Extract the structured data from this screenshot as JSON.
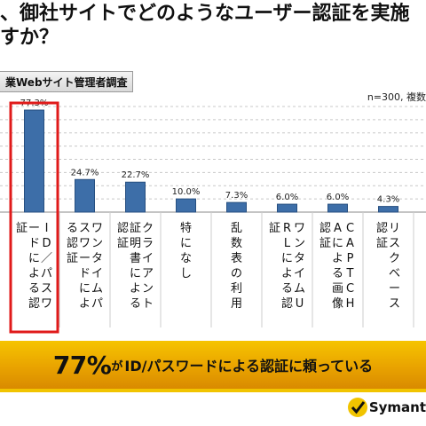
{
  "header": {
    "title_line1": "、御社サイトでどのようなユーザー認証を実施",
    "title_line2": "すか？",
    "survey_tag": "業Webサイト管理者調査",
    "sample_note": "n=300, 複数"
  },
  "chart_data": {
    "type": "bar",
    "categories": [
      "ID／パスワードによる認証",
      "ワンタイムパスワードによる認証",
      "クライアント証明書による認証",
      "特になし",
      "乱数表の利用",
      "ワンタイムURLによる認証",
      "CAPTCHAによる画像認証",
      "リスクベース認証"
    ],
    "values": [
      77.3,
      24.7,
      22.7,
      10.0,
      7.3,
      6.0,
      6.0,
      4.3
    ],
    "value_labels": [
      "77.3%",
      "24.7%",
      "22.7%",
      "10.0%",
      "7.3%",
      "6.0%",
      "6.0%",
      "4.3%"
    ],
    "ylim": [
      0,
      80
    ],
    "highlight_category": "ID／パスワードによる認証",
    "bar_color": "#3d6ea8",
    "highlight_color": "#e01a1a"
  },
  "banner": {
    "big": "77%",
    "small": "が",
    "rest": "ID/パスワードによる認証に頼っている"
  },
  "footer": {
    "logo_text": "Symant"
  }
}
